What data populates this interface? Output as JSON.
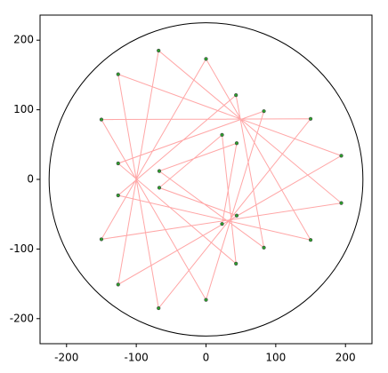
{
  "chart_data": {
    "type": "scatter",
    "xlim": [
      -238,
      238
    ],
    "ylim": [
      -236,
      236
    ],
    "xticks": [
      -200,
      -100,
      0,
      100,
      200
    ],
    "yticks": [
      -200,
      -100,
      0,
      100,
      200
    ],
    "circle_radius": 225,
    "series": [
      {
        "type": "line",
        "color": "#ff0000",
        "x": [
          23,
          44,
          -67,
          83,
          43,
          -126,
          150,
          0,
          -150,
          194,
          -68,
          -126,
          194,
          -126,
          -68,
          150,
          -150,
          0,
          83,
          -126,
          43,
          23,
          -67,
          44
        ],
        "values": [
          -64,
          52,
          12,
          -98,
          121,
          -23,
          -87,
          173,
          -86,
          -34,
          185,
          -151,
          34,
          151,
          -185,
          87,
          86,
          -173,
          98,
          23,
          -121,
          64,
          -12,
          -52
        ]
      },
      {
        "type": "scatter",
        "color": "#2ca02c",
        "x": [
          23,
          44,
          -67,
          83,
          43,
          -126,
          150,
          0,
          -150,
          194,
          -68,
          -126,
          194,
          -126,
          -68,
          150,
          -150,
          0,
          83,
          -126,
          43,
          23,
          -67,
          44
        ],
        "values": [
          -64,
          52,
          12,
          -98,
          121,
          -23,
          -87,
          173,
          -86,
          -34,
          185,
          -151,
          34,
          151,
          -185,
          87,
          86,
          -173,
          98,
          23,
          -121,
          64,
          -12,
          -52
        ]
      }
    ]
  }
}
